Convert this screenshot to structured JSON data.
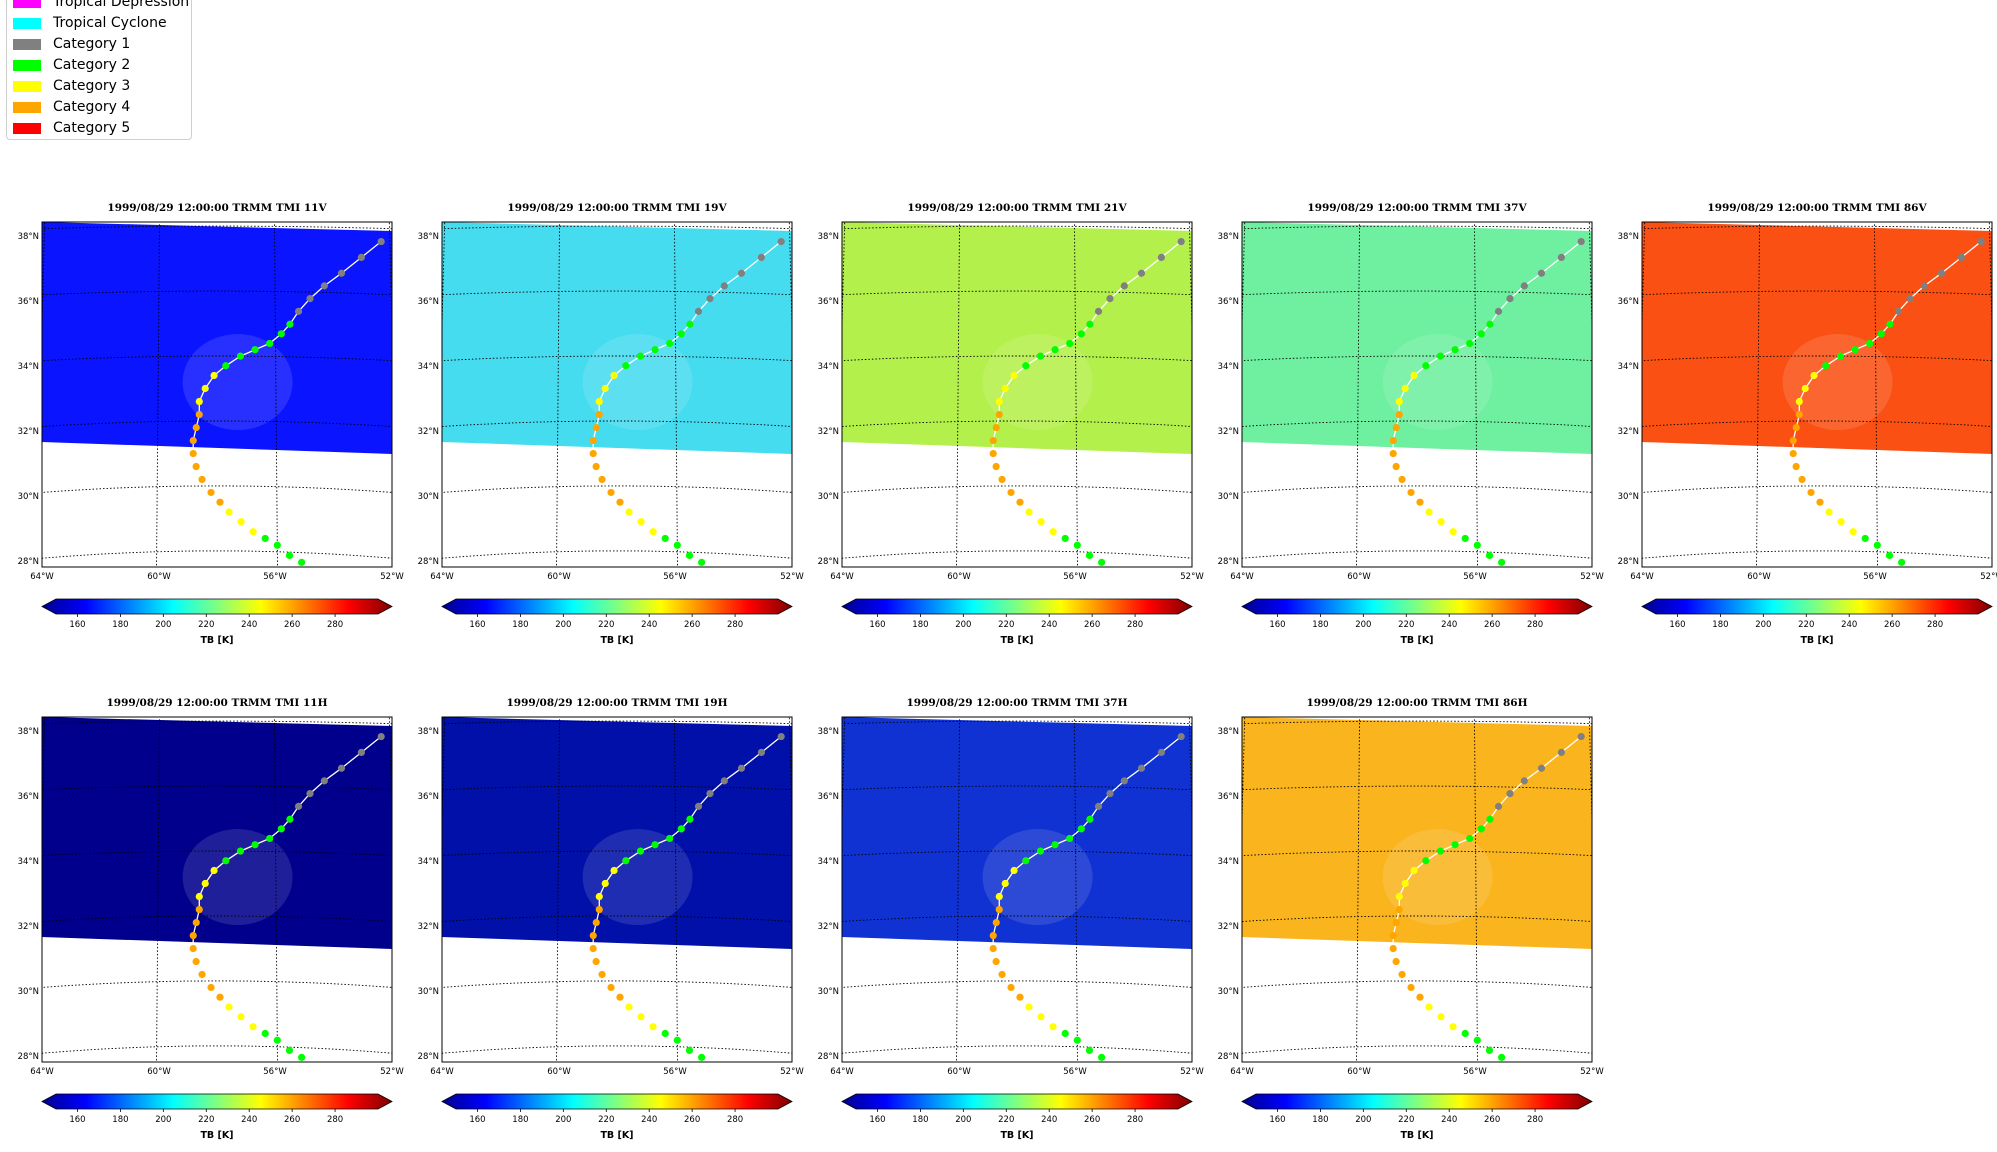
{
  "legend": {
    "items": [
      {
        "label": "Tropical Depression",
        "color": "#ff00ff"
      },
      {
        "label": "Tropical Cyclone",
        "color": "#00ffff"
      },
      {
        "label": "Category 1",
        "color": "#808080"
      },
      {
        "label": "Category 2",
        "color": "#00ff00"
      },
      {
        "label": "Category 3",
        "color": "#ffff00"
      },
      {
        "label": "Category 4",
        "color": "#ffa500"
      },
      {
        "label": "Category 5",
        "color": "#ff0000"
      }
    ]
  },
  "map": {
    "lat_labels": [
      "38°N",
      "36°N",
      "34°N",
      "32°N",
      "30°N",
      "28°N"
    ],
    "lon_labels": [
      "64°W",
      "60°W",
      "56°W",
      "52°W"
    ]
  },
  "colorbar": {
    "ticks": [
      "160",
      "180",
      "200",
      "220",
      "240",
      "260",
      "280"
    ],
    "label": "TB [K]"
  },
  "panels": [
    {
      "title": "1999/08/29 12:00:00  TRMM TMI 11V",
      "channel": "11V",
      "background": "#0a14ff"
    },
    {
      "title": "1999/08/29 12:00:00  TRMM TMI 19V",
      "channel": "19V",
      "background": "#46dcf0"
    },
    {
      "title": "1999/08/29 12:00:00  TRMM TMI 21V",
      "channel": "21V",
      "background": "#b4f04b"
    },
    {
      "title": "1999/08/29 12:00:00  TRMM TMI 37V",
      "channel": "37V",
      "background": "#6ef0a0"
    },
    {
      "title": "1999/08/29 12:00:00  TRMM TMI 86V",
      "channel": "86V",
      "background": "#fa5014"
    },
    {
      "title": "1999/08/29 12:00:00  TRMM TMI 11H",
      "channel": "11H",
      "background": "#00008c"
    },
    {
      "title": "1999/08/29 12:00:00  TRMM TMI 19H",
      "channel": "19H",
      "background": "#0010a8"
    },
    {
      "title": "1999/08/29 12:00:00  TRMM TMI 37H",
      "channel": "37H",
      "background": "#1032d2"
    },
    {
      "title": "1999/08/29 12:00:00  TRMM TMI 86H",
      "channel": "86H",
      "background": "#fab41e"
    }
  ],
  "track": [
    {
      "lon": 52.3,
      "lat": 37.6,
      "cat": "Category 1"
    },
    {
      "lon": 53.0,
      "lat": 37.1,
      "cat": "Category 1"
    },
    {
      "lon": 53.7,
      "lat": 36.6,
      "cat": "Category 1"
    },
    {
      "lon": 54.3,
      "lat": 36.2,
      "cat": "Category 1"
    },
    {
      "lon": 54.8,
      "lat": 35.8,
      "cat": "Category 1"
    },
    {
      "lon": 55.2,
      "lat": 35.4,
      "cat": "Category 1"
    },
    {
      "lon": 55.5,
      "lat": 35.0,
      "cat": "Category 2"
    },
    {
      "lon": 55.8,
      "lat": 34.7,
      "cat": "Category 2"
    },
    {
      "lon": 56.2,
      "lat": 34.4,
      "cat": "Category 2"
    },
    {
      "lon": 56.7,
      "lat": 34.2,
      "cat": "Category 2"
    },
    {
      "lon": 57.2,
      "lat": 34.0,
      "cat": "Category 2"
    },
    {
      "lon": 57.7,
      "lat": 33.7,
      "cat": "Category 2"
    },
    {
      "lon": 58.1,
      "lat": 33.4,
      "cat": "Category 3"
    },
    {
      "lon": 58.4,
      "lat": 33.0,
      "cat": "Category 3"
    },
    {
      "lon": 58.6,
      "lat": 32.6,
      "cat": "Category 3"
    },
    {
      "lon": 58.6,
      "lat": 32.2,
      "cat": "Category 4"
    },
    {
      "lon": 58.7,
      "lat": 31.8,
      "cat": "Category 4"
    },
    {
      "lon": 58.8,
      "lat": 31.4,
      "cat": "Category 4"
    },
    {
      "lon": 58.8,
      "lat": 31.0,
      "cat": "Category 4"
    },
    {
      "lon": 58.7,
      "lat": 30.6,
      "cat": "Category 4"
    },
    {
      "lon": 58.5,
      "lat": 30.2,
      "cat": "Category 4"
    },
    {
      "lon": 58.2,
      "lat": 29.8,
      "cat": "Category 4"
    },
    {
      "lon": 57.9,
      "lat": 29.5,
      "cat": "Category 4"
    },
    {
      "lon": 57.6,
      "lat": 29.2,
      "cat": "Category 3"
    },
    {
      "lon": 57.2,
      "lat": 28.9,
      "cat": "Category 3"
    },
    {
      "lon": 56.8,
      "lat": 28.6,
      "cat": "Category 3"
    },
    {
      "lon": 56.4,
      "lat": 28.4,
      "cat": "Category 2"
    },
    {
      "lon": 56.0,
      "lat": 28.2,
      "cat": "Category 2"
    },
    {
      "lon": 55.6,
      "lat": 27.9,
      "cat": "Category 2"
    },
    {
      "lon": 55.2,
      "lat": 27.7,
      "cat": "Category 2"
    }
  ]
}
